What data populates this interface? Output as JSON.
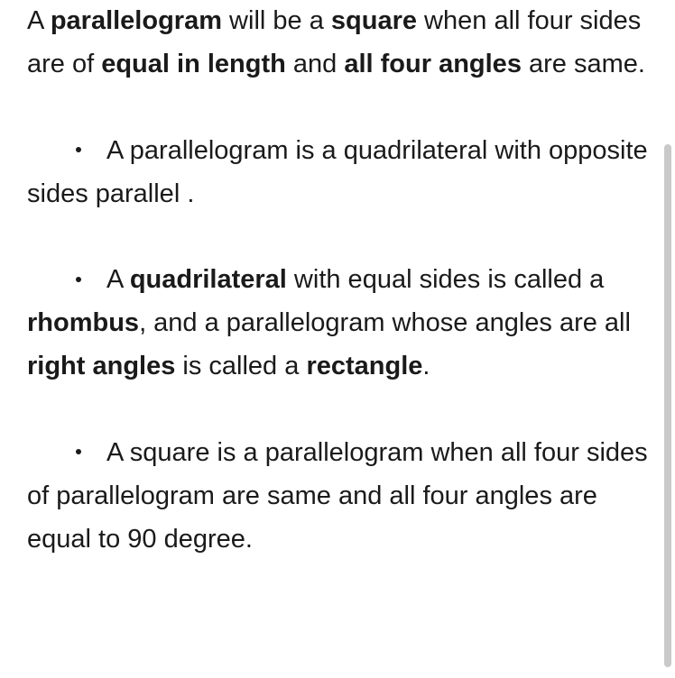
{
  "text_color": "#1a1a1a",
  "background_color": "#ffffff",
  "font_size": 29,
  "intro": {
    "seg1": "A ",
    "bold1": "parallelogram",
    "seg2": " will be a ",
    "bold2": "square",
    "seg3": " when all four sides are of ",
    "bold3": "equal in length",
    "seg4": " and ",
    "bold4": "all four angles",
    "seg5": " are same."
  },
  "bullets": [
    {
      "parts": [
        {
          "text": "A parallelogram is a quadrilateral with opposite sides parallel .",
          "bold": false
        }
      ]
    },
    {
      "parts": [
        {
          "text": "A ",
          "bold": false
        },
        {
          "text": "quadrilateral",
          "bold": true
        },
        {
          "text": " with equal sides is called a ",
          "bold": false
        },
        {
          "text": "rhombus",
          "bold": true
        },
        {
          "text": ", and a parallelogram whose angles are all ",
          "bold": false
        },
        {
          "text": "right angles",
          "bold": true
        },
        {
          "text": " is called a ",
          "bold": false
        },
        {
          "text": "rectangle",
          "bold": true
        },
        {
          "text": ".",
          "bold": false
        }
      ]
    },
    {
      "parts": [
        {
          "text": "A square is a parallelogram when all four sides of parallelogram are same and all four angles are equal to 90 degree.",
          "bold": false
        }
      ]
    }
  ],
  "scrollbar_color": "#c9c9c9"
}
